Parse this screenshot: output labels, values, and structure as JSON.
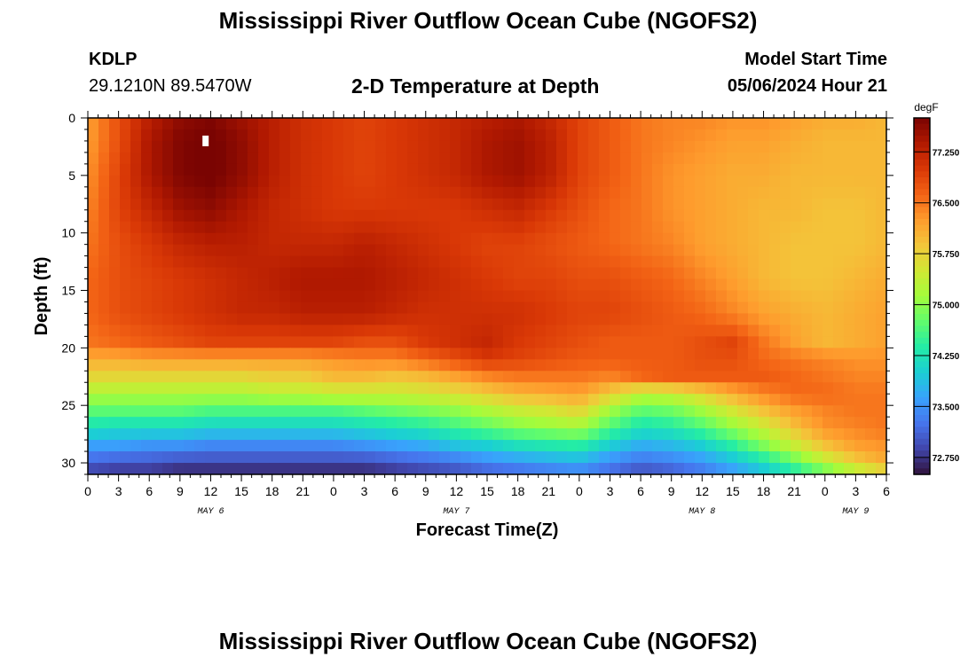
{
  "page": {
    "title": "Mississippi River Outflow Ocean Cube (NGOFS2)",
    "title_repeat": "Mississippi River Outflow Ocean Cube (NGOFS2)",
    "station_id": "KDLP",
    "station_coords": "29.1210N  89.5470W",
    "plot_subtitle": "2-D Temperature at Depth",
    "model_start_label": "Model Start Time",
    "model_start_value": "05/06/2024 Hour 21"
  },
  "chart_data": {
    "type": "heatmap",
    "title": "2-D Temperature at Depth",
    "xlabel": "Forecast Time(Z)",
    "ylabel": "Depth (ft)",
    "x_hours": [
      0,
      78
    ],
    "x_tick_labels": [
      "0",
      "3",
      "6",
      "9",
      "12",
      "15",
      "18",
      "21",
      "0",
      "3",
      "6",
      "9",
      "12",
      "15",
      "18",
      "21",
      "0",
      "3",
      "6",
      "9",
      "12",
      "15",
      "18",
      "21",
      "0",
      "3",
      "6"
    ],
    "day_labels": [
      {
        "label": "MAY 6",
        "hour": 12
      },
      {
        "label": "MAY 7",
        "hour": 36
      },
      {
        "label": "MAY 8",
        "hour": 60
      },
      {
        "label": "MAY 9",
        "hour": 75
      }
    ],
    "y_ticks": [
      0,
      5,
      10,
      15,
      20,
      25,
      30
    ],
    "y_range_ft": [
      0,
      31
    ],
    "colorbar": {
      "unit": "degF",
      "range": [
        72.5,
        77.75
      ],
      "tick_labels": [
        "72.750",
        "73.500",
        "74.250",
        "75.000",
        "75.750",
        "76.500",
        "77.250"
      ],
      "colors": [
        "#30123b",
        "#4145ab",
        "#4675ed",
        "#39a2fc",
        "#1bcfd4",
        "#24eca6",
        "#61fc6c",
        "#a4fc3b",
        "#d1e834",
        "#f3c63a",
        "#fe9b2d",
        "#f36315",
        "#d93806",
        "#b11901",
        "#7a0402"
      ]
    },
    "temperature_grid": {
      "x_hours": [
        0,
        3,
        6,
        9,
        12,
        15,
        18,
        21,
        24,
        27,
        30,
        33,
        36,
        39,
        42,
        45,
        48,
        51,
        54,
        57,
        60,
        63,
        66,
        69,
        72,
        75,
        78
      ],
      "depth_ft": [
        0,
        2,
        5,
        8,
        11,
        14,
        17,
        19.5,
        21,
        22.5,
        24,
        25.5,
        27,
        28.5,
        30,
        31
      ],
      "values": [
        [
          76.2,
          76.8,
          77.3,
          77.6,
          77.7,
          77.5,
          77.3,
          77.1,
          77.0,
          76.9,
          77.0,
          77.1,
          77.2,
          77.3,
          77.4,
          77.2,
          76.9,
          76.7,
          76.5,
          76.4,
          76.4,
          76.3,
          76.3,
          76.2,
          76.1,
          76.1,
          76.0
        ],
        [
          76.2,
          76.8,
          77.4,
          77.7,
          77.8,
          77.6,
          77.3,
          77.1,
          77.0,
          76.9,
          77.0,
          77.1,
          77.2,
          77.4,
          77.5,
          77.3,
          76.9,
          76.7,
          76.5,
          76.4,
          76.3,
          76.2,
          76.2,
          76.1,
          76.0,
          76.0,
          76.0
        ],
        [
          76.3,
          76.9,
          77.4,
          77.7,
          77.8,
          77.6,
          77.3,
          77.1,
          77.0,
          76.9,
          77.0,
          77.1,
          77.2,
          77.4,
          77.5,
          77.3,
          76.9,
          76.7,
          76.5,
          76.3,
          76.2,
          76.1,
          76.1,
          76.0,
          76.0,
          76.0,
          76.0
        ],
        [
          76.4,
          76.9,
          77.2,
          77.5,
          77.6,
          77.4,
          77.2,
          77.1,
          77.0,
          77.0,
          77.0,
          77.0,
          77.0,
          77.1,
          77.2,
          77.0,
          76.8,
          76.6,
          76.5,
          76.3,
          76.2,
          76.1,
          76.0,
          76.0,
          75.9,
          75.9,
          76.0
        ],
        [
          76.5,
          76.8,
          77.0,
          77.2,
          77.3,
          77.3,
          77.2,
          77.2,
          77.2,
          77.3,
          77.2,
          77.1,
          77.0,
          76.9,
          76.9,
          76.8,
          76.7,
          76.6,
          76.5,
          76.4,
          76.2,
          76.1,
          76.0,
          75.9,
          75.9,
          75.9,
          76.0
        ],
        [
          76.6,
          76.8,
          76.9,
          77.0,
          77.1,
          77.2,
          77.3,
          77.4,
          77.4,
          77.4,
          77.3,
          77.2,
          77.1,
          77.0,
          76.9,
          76.9,
          76.8,
          76.8,
          76.7,
          76.6,
          76.4,
          76.2,
          76.0,
          75.9,
          75.9,
          76.0,
          76.1
        ],
        [
          76.6,
          76.8,
          76.9,
          77.0,
          77.1,
          77.2,
          77.2,
          77.3,
          77.3,
          77.3,
          77.2,
          77.1,
          77.1,
          77.1,
          77.1,
          77.0,
          76.9,
          76.9,
          76.8,
          76.7,
          76.6,
          76.4,
          76.2,
          76.1,
          76.0,
          76.1,
          76.2
        ],
        [
          76.5,
          76.6,
          76.7,
          76.8,
          76.9,
          76.9,
          76.9,
          76.9,
          76.9,
          76.8,
          76.8,
          77.0,
          77.1,
          77.2,
          77.0,
          76.9,
          76.8,
          76.7,
          76.7,
          76.7,
          76.8,
          76.9,
          76.5,
          76.2,
          76.0,
          76.1,
          76.2
        ],
        [
          76.1,
          76.1,
          76.2,
          76.2,
          76.2,
          76.2,
          76.2,
          76.2,
          76.3,
          76.4,
          76.4,
          76.6,
          76.8,
          77.0,
          76.9,
          76.8,
          76.7,
          76.7,
          76.7,
          76.7,
          76.8,
          76.8,
          76.6,
          76.5,
          76.4,
          76.3,
          76.3
        ],
        [
          75.7,
          75.7,
          75.7,
          75.7,
          75.7,
          75.7,
          75.8,
          75.8,
          76.0,
          76.0,
          75.9,
          76.0,
          76.2,
          76.4,
          76.5,
          76.5,
          76.5,
          76.4,
          76.6,
          76.7,
          76.7,
          76.7,
          76.7,
          76.6,
          76.5,
          76.4,
          76.4
        ],
        [
          75.2,
          75.2,
          75.2,
          75.2,
          75.2,
          75.2,
          75.3,
          75.3,
          75.4,
          75.4,
          75.4,
          75.5,
          75.6,
          75.8,
          76.0,
          76.1,
          76.2,
          75.8,
          75.3,
          75.4,
          75.7,
          76.1,
          76.4,
          76.6,
          76.6,
          76.5,
          76.5
        ],
        [
          74.7,
          74.7,
          74.7,
          74.7,
          74.6,
          74.6,
          74.6,
          74.6,
          74.6,
          74.7,
          74.8,
          74.9,
          75.0,
          75.2,
          75.4,
          75.5,
          75.7,
          75.1,
          74.7,
          74.8,
          75.1,
          75.5,
          75.9,
          76.2,
          76.4,
          76.5,
          76.5
        ],
        [
          74.2,
          74.1,
          74.1,
          74.1,
          74.0,
          74.0,
          74.0,
          74.0,
          74.0,
          74.1,
          74.2,
          74.3,
          74.5,
          74.7,
          74.9,
          75.0,
          75.1,
          74.6,
          74.2,
          74.3,
          74.6,
          75.0,
          75.4,
          75.9,
          76.3,
          76.4,
          76.5
        ],
        [
          73.6,
          73.6,
          73.5,
          73.5,
          73.4,
          73.4,
          73.4,
          73.4,
          73.4,
          73.5,
          73.6,
          73.7,
          73.9,
          74.0,
          74.2,
          74.3,
          74.4,
          74.0,
          73.7,
          73.8,
          74.0,
          74.4,
          74.9,
          75.4,
          75.9,
          76.2,
          76.3
        ],
        [
          73.1,
          73.0,
          73.0,
          72.9,
          72.9,
          72.9,
          72.9,
          72.9,
          72.9,
          72.9,
          73.0,
          73.1,
          73.2,
          73.4,
          73.5,
          73.6,
          73.7,
          73.4,
          73.2,
          73.3,
          73.5,
          73.8,
          74.2,
          74.7,
          75.3,
          75.8,
          76.1
        ],
        [
          72.8,
          72.7,
          72.7,
          72.6,
          72.6,
          72.6,
          72.6,
          72.6,
          72.6,
          72.6,
          72.7,
          72.8,
          72.9,
          73.0,
          73.1,
          73.2,
          73.3,
          73.1,
          72.9,
          73.0,
          73.2,
          73.5,
          73.8,
          74.2,
          74.6,
          75.1,
          75.5
        ]
      ]
    },
    "marker": {
      "hour": 11.5,
      "depth_ft": 2
    }
  }
}
